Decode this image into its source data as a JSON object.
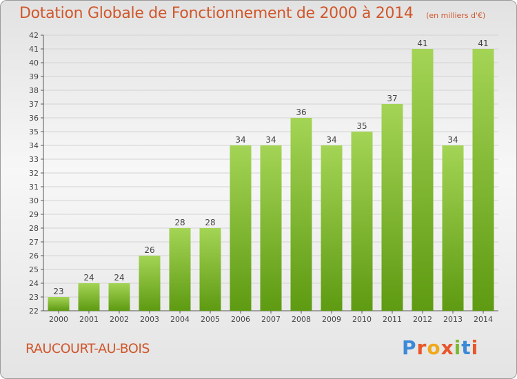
{
  "header": {
    "title": "Dotation Globale de Fonctionnement de 2000 à 2014",
    "subtitle": "(en milliers d'€)"
  },
  "footer": {
    "commune": "RAUCOURT-AU-BOIS",
    "logo_text": "Proxiti",
    "logo_colors": [
      "#3b8ad9",
      "#e8562a",
      "#f0a91a",
      "#e8562a",
      "#7bb930",
      "#3b8ad9",
      "#e8562a"
    ]
  },
  "chart_data": {
    "type": "bar",
    "categories": [
      "2000",
      "2001",
      "2002",
      "2003",
      "2004",
      "2005",
      "2006",
      "2007",
      "2008",
      "2009",
      "2010",
      "2011",
      "2012",
      "2013",
      "2014"
    ],
    "values": [
      23,
      24,
      24,
      26,
      28,
      28,
      34,
      34,
      36,
      34,
      35,
      37,
      41,
      34,
      41
    ],
    "data_labels": [
      "23",
      "24",
      "24",
      "26",
      "28",
      "28",
      "34",
      "34",
      "36",
      "34",
      "35",
      "37",
      "41",
      "34",
      "41"
    ],
    "title": "Dotation Globale de Fonctionnement de 2000 à 2014",
    "subtitle": "(en milliers d'€)",
    "xlabel": "",
    "ylabel": "",
    "ylim": [
      22,
      42
    ],
    "yticks": [
      22,
      23,
      24,
      25,
      26,
      27,
      28,
      29,
      30,
      31,
      32,
      33,
      34,
      35,
      36,
      37,
      38,
      39,
      40,
      41,
      42
    ],
    "grid": true,
    "bar_color_top": "#a4d455",
    "bar_color_bottom": "#5e9a12"
  }
}
